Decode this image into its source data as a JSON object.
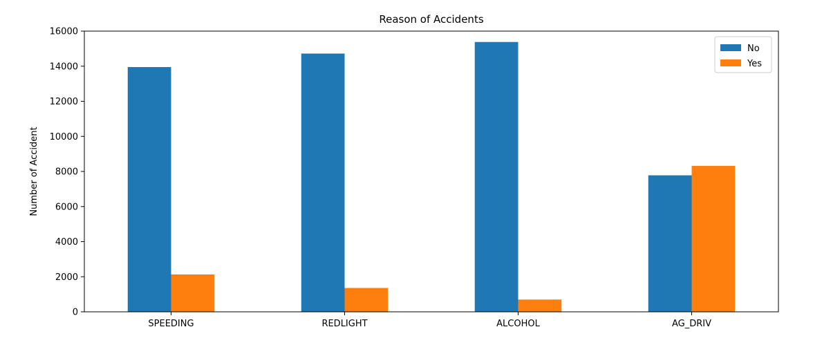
{
  "chart_data": {
    "type": "bar",
    "title": "Reason of Accidents",
    "xlabel": "",
    "ylabel": "Number of Accident",
    "categories": [
      "SPEEDING",
      "REDLIGHT",
      "ALCOHOL",
      "AG_DRIV"
    ],
    "series": [
      {
        "name": "No",
        "color": "#1f77b4",
        "values": [
          13950,
          14720,
          15380,
          7780
        ]
      },
      {
        "name": "Yes",
        "color": "#ff7f0e",
        "values": [
          2130,
          1360,
          700,
          8320
        ]
      }
    ],
    "ylim": [
      0,
      16000
    ],
    "yticks": [
      0,
      2000,
      4000,
      6000,
      8000,
      10000,
      12000,
      14000,
      16000
    ],
    "grid": false,
    "legend_position": "top-right"
  }
}
